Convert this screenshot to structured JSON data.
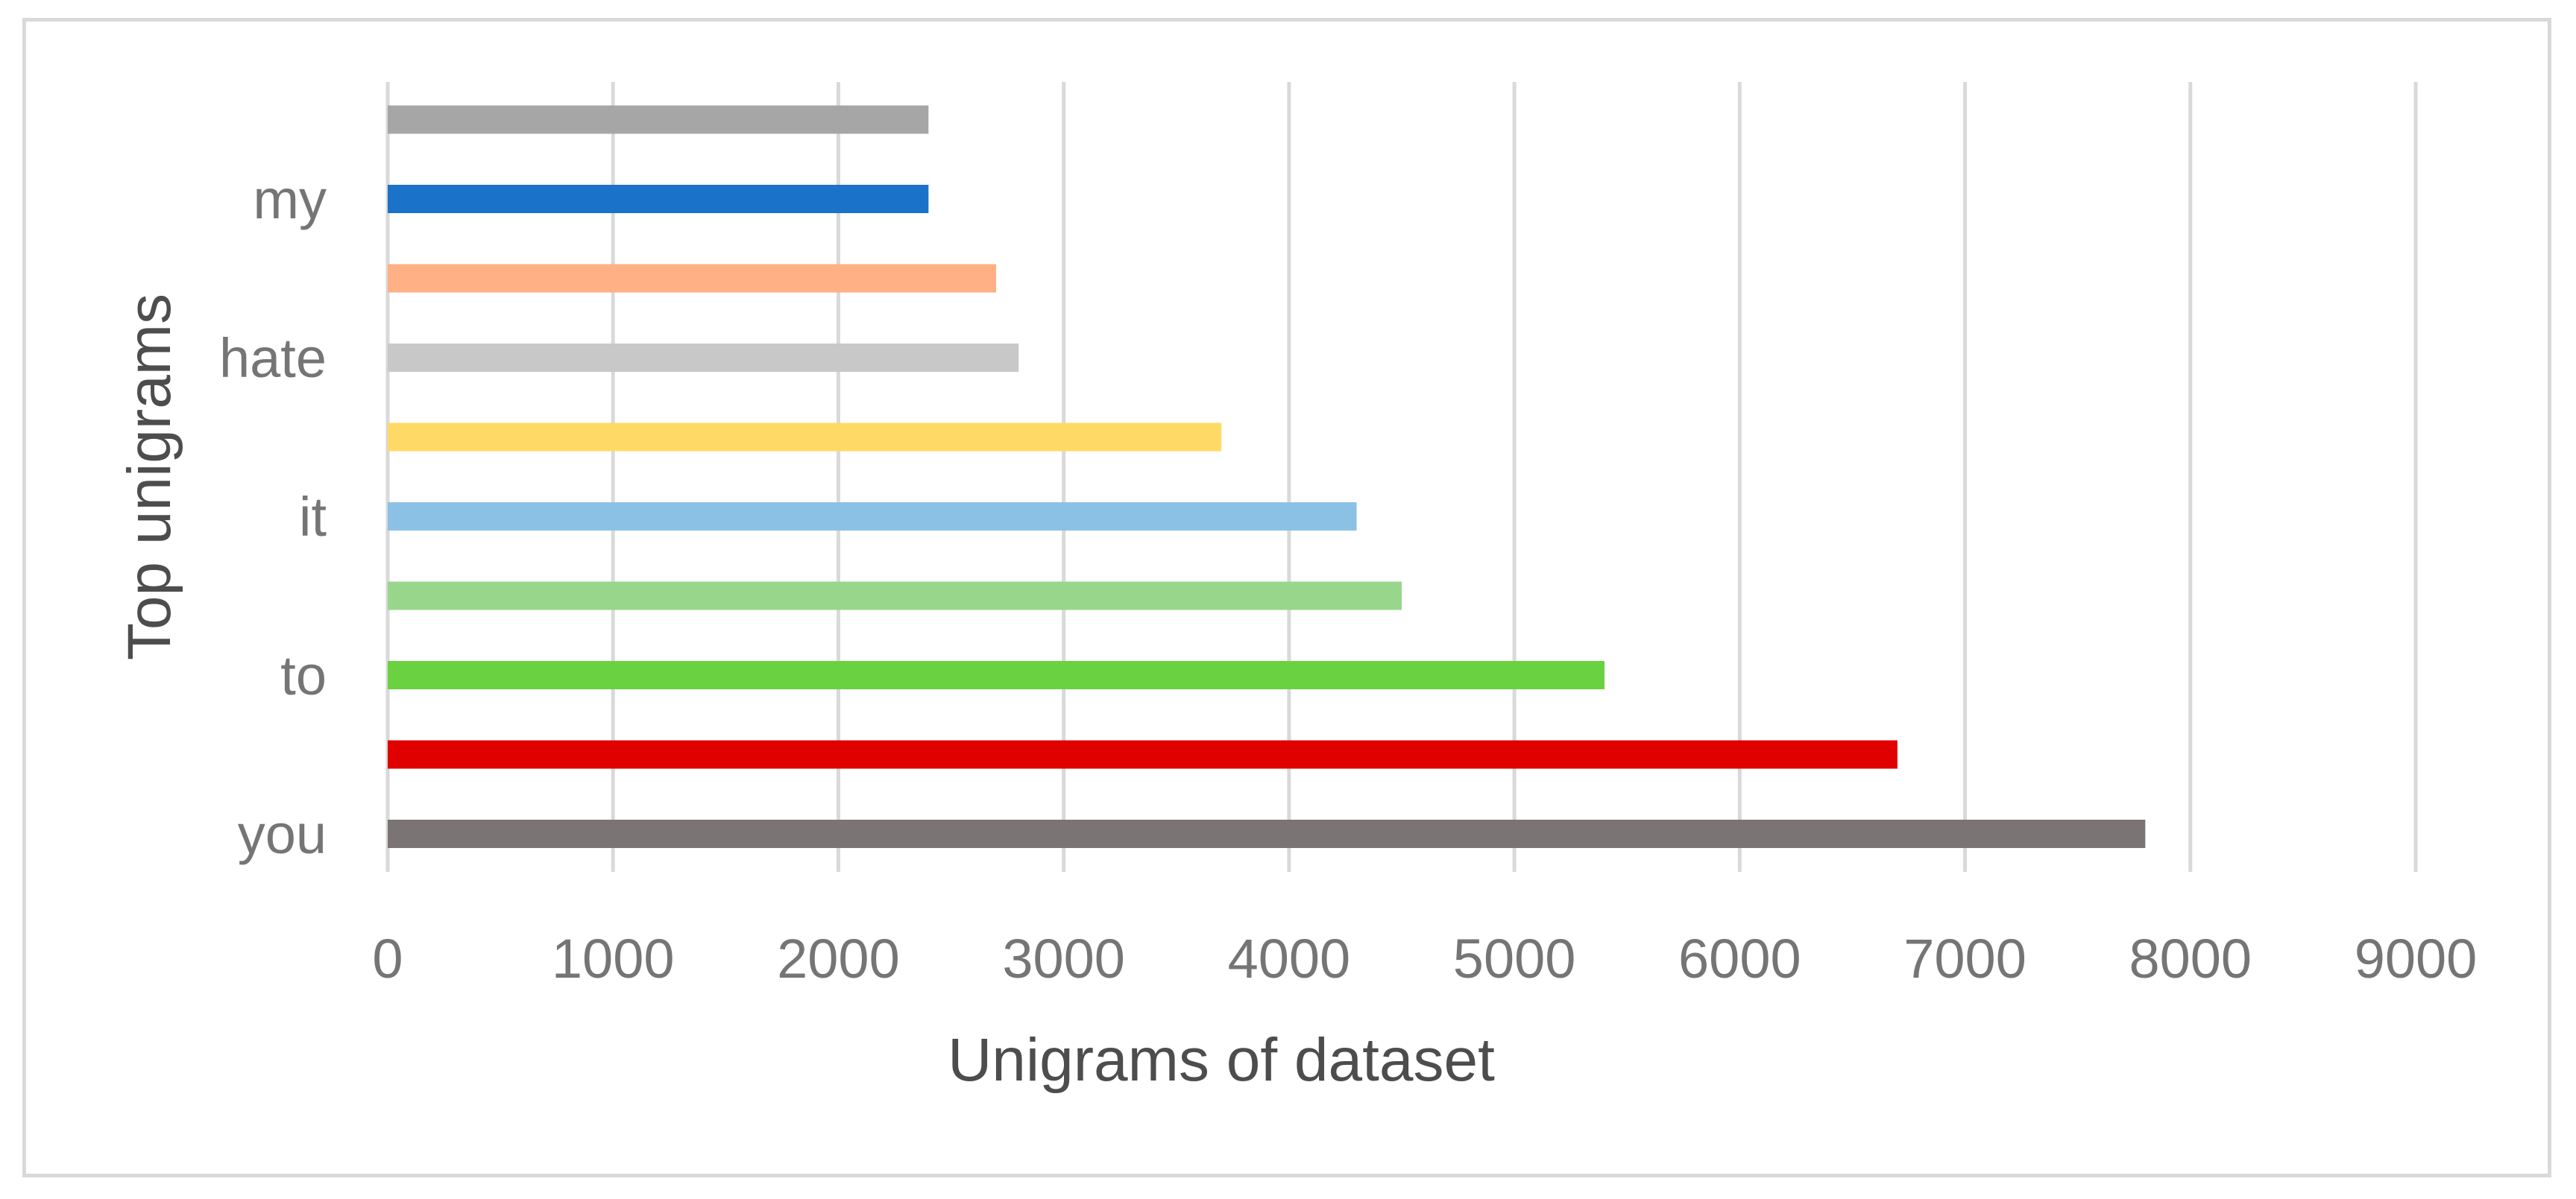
{
  "chart_data": {
    "type": "bar",
    "orientation": "horizontal",
    "xlabel": "Unigrams of dataset",
    "ylabel": "Top unigrams",
    "xlim": [
      0,
      9000
    ],
    "xticks": [
      0,
      1000,
      2000,
      3000,
      4000,
      5000,
      6000,
      7000,
      8000,
      9000
    ],
    "grid": true,
    "legend": "none",
    "bars": [
      {
        "label": "you",
        "value": 7800,
        "color": "#7a7474"
      },
      {
        "label": "",
        "value": 6700,
        "color": "#e00000"
      },
      {
        "label": "to",
        "value": 5400,
        "color": "#6ad141"
      },
      {
        "label": "",
        "value": 4500,
        "color": "#98d68b"
      },
      {
        "label": "it",
        "value": 4300,
        "color": "#8cc1e6"
      },
      {
        "label": "",
        "value": 3700,
        "color": "#ffd966"
      },
      {
        "label": "hate",
        "value": 2800,
        "color": "#c8c8c8"
      },
      {
        "label": "",
        "value": 2700,
        "color": "#ffb085"
      },
      {
        "label": "my",
        "value": 2400,
        "color": "#1b72c9"
      },
      {
        "label": "",
        "value": 2400,
        "color": "#a6a6a6"
      }
    ]
  }
}
